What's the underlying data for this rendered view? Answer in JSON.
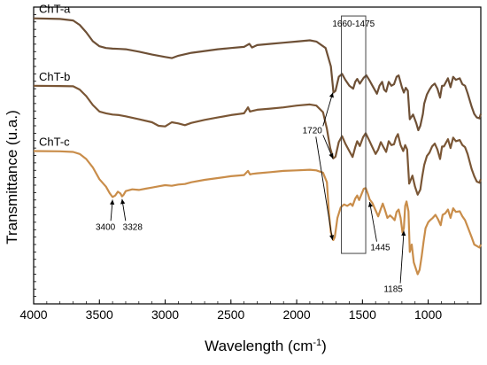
{
  "chart_data": {
    "type": "line",
    "xlabel": "Wavelength (cm",
    "xlabel_sup": "-1",
    "xlabel_end": ")",
    "ylabel": "Transmittance (u.a.)",
    "xlim": [
      4000,
      600
    ],
    "x_reversed": true,
    "ylim": [
      0,
      1
    ],
    "grid": false,
    "x_ticks": [
      4000,
      3500,
      3000,
      2500,
      2000,
      1500,
      1000
    ],
    "x_tick_labels": [
      "4000",
      "3500",
      "3000",
      "2500",
      "2000",
      "1500",
      "1000"
    ],
    "series": [
      {
        "name": "ChT-a",
        "color": "#6e5036",
        "points": [
          [
            4000,
            0.962
          ],
          [
            3800,
            0.96
          ],
          [
            3700,
            0.955
          ],
          [
            3650,
            0.94
          ],
          [
            3600,
            0.915
          ],
          [
            3550,
            0.885
          ],
          [
            3500,
            0.868
          ],
          [
            3450,
            0.862
          ],
          [
            3400,
            0.86
          ],
          [
            3350,
            0.859
          ],
          [
            3300,
            0.858
          ],
          [
            3200,
            0.85
          ],
          [
            3100,
            0.84
          ],
          [
            3000,
            0.832
          ],
          [
            2950,
            0.828
          ],
          [
            2900,
            0.836
          ],
          [
            2800,
            0.846
          ],
          [
            2700,
            0.852
          ],
          [
            2600,
            0.858
          ],
          [
            2500,
            0.862
          ],
          [
            2400,
            0.866
          ],
          [
            2360,
            0.876
          ],
          [
            2340,
            0.864
          ],
          [
            2300,
            0.872
          ],
          [
            2200,
            0.876
          ],
          [
            2100,
            0.88
          ],
          [
            2000,
            0.884
          ],
          [
            1900,
            0.888
          ],
          [
            1850,
            0.884
          ],
          [
            1780,
            0.862
          ],
          [
            1740,
            0.8
          ],
          [
            1720,
            0.712
          ],
          [
            1705,
            0.718
          ],
          [
            1680,
            0.765
          ],
          [
            1655,
            0.775
          ],
          [
            1630,
            0.755
          ],
          [
            1600,
            0.735
          ],
          [
            1570,
            0.725
          ],
          [
            1555,
            0.748
          ],
          [
            1540,
            0.758
          ],
          [
            1520,
            0.742
          ],
          [
            1490,
            0.762
          ],
          [
            1470,
            0.77
          ],
          [
            1445,
            0.752
          ],
          [
            1420,
            0.732
          ],
          [
            1390,
            0.708
          ],
          [
            1370,
            0.735
          ],
          [
            1350,
            0.748
          ],
          [
            1335,
            0.722
          ],
          [
            1320,
            0.715
          ],
          [
            1300,
            0.748
          ],
          [
            1280,
            0.735
          ],
          [
            1260,
            0.74
          ],
          [
            1240,
            0.765
          ],
          [
            1225,
            0.77
          ],
          [
            1200,
            0.73
          ],
          [
            1185,
            0.712
          ],
          [
            1170,
            0.728
          ],
          [
            1155,
            0.718
          ],
          [
            1140,
            0.622
          ],
          [
            1115,
            0.638
          ],
          [
            1090,
            0.608
          ],
          [
            1075,
            0.585
          ],
          [
            1060,
            0.6
          ],
          [
            1040,
            0.64
          ],
          [
            1030,
            0.675
          ],
          [
            1010,
            0.705
          ],
          [
            990,
            0.722
          ],
          [
            970,
            0.735
          ],
          [
            950,
            0.742
          ],
          [
            930,
            0.725
          ],
          [
            910,
            0.695
          ],
          [
            895,
            0.735
          ],
          [
            880,
            0.735
          ],
          [
            850,
            0.76
          ],
          [
            830,
            0.73
          ],
          [
            810,
            0.765
          ],
          [
            790,
            0.755
          ],
          [
            760,
            0.76
          ],
          [
            740,
            0.74
          ],
          [
            720,
            0.735
          ],
          [
            700,
            0.71
          ],
          [
            670,
            0.665
          ],
          [
            650,
            0.64
          ],
          [
            630,
            0.628
          ],
          [
            610,
            0.625
          ],
          [
            600,
            0.64
          ]
        ]
      },
      {
        "name": "ChT-b",
        "color": "#7a5635",
        "points": [
          [
            4000,
            0.735
          ],
          [
            3800,
            0.734
          ],
          [
            3700,
            0.733
          ],
          [
            3650,
            0.722
          ],
          [
            3600,
            0.7
          ],
          [
            3550,
            0.67
          ],
          [
            3500,
            0.648
          ],
          [
            3450,
            0.642
          ],
          [
            3400,
            0.638
          ],
          [
            3350,
            0.636
          ],
          [
            3300,
            0.632
          ],
          [
            3200,
            0.622
          ],
          [
            3100,
            0.612
          ],
          [
            3050,
            0.6
          ],
          [
            3000,
            0.598
          ],
          [
            2950,
            0.612
          ],
          [
            2900,
            0.608
          ],
          [
            2850,
            0.602
          ],
          [
            2800,
            0.61
          ],
          [
            2700,
            0.62
          ],
          [
            2600,
            0.628
          ],
          [
            2500,
            0.636
          ],
          [
            2400,
            0.642
          ],
          [
            2370,
            0.662
          ],
          [
            2355,
            0.648
          ],
          [
            2340,
            0.65
          ],
          [
            2300,
            0.654
          ],
          [
            2200,
            0.658
          ],
          [
            2100,
            0.662
          ],
          [
            2000,
            0.668
          ],
          [
            1900,
            0.672
          ],
          [
            1850,
            0.668
          ],
          [
            1800,
            0.646
          ],
          [
            1770,
            0.59
          ],
          [
            1745,
            0.525
          ],
          [
            1722,
            0.49
          ],
          [
            1705,
            0.496
          ],
          [
            1680,
            0.545
          ],
          [
            1655,
            0.565
          ],
          [
            1630,
            0.54
          ],
          [
            1600,
            0.515
          ],
          [
            1575,
            0.495
          ],
          [
            1555,
            0.528
          ],
          [
            1540,
            0.548
          ],
          [
            1520,
            0.532
          ],
          [
            1495,
            0.562
          ],
          [
            1475,
            0.575
          ],
          [
            1450,
            0.552
          ],
          [
            1425,
            0.528
          ],
          [
            1400,
            0.505
          ],
          [
            1380,
            0.52
          ],
          [
            1360,
            0.545
          ],
          [
            1340,
            0.528
          ],
          [
            1320,
            0.512
          ],
          [
            1300,
            0.548
          ],
          [
            1280,
            0.535
          ],
          [
            1260,
            0.538
          ],
          [
            1245,
            0.56
          ],
          [
            1230,
            0.572
          ],
          [
            1210,
            0.535
          ],
          [
            1190,
            0.515
          ],
          [
            1175,
            0.535
          ],
          [
            1160,
            0.52
          ],
          [
            1145,
            0.405
          ],
          [
            1120,
            0.432
          ],
          [
            1100,
            0.395
          ],
          [
            1080,
            0.368
          ],
          [
            1060,
            0.385
          ],
          [
            1045,
            0.43
          ],
          [
            1030,
            0.468
          ],
          [
            1010,
            0.498
          ],
          [
            990,
            0.51
          ],
          [
            970,
            0.53
          ],
          [
            950,
            0.54
          ],
          [
            930,
            0.52
          ],
          [
            910,
            0.488
          ],
          [
            895,
            0.53
          ],
          [
            880,
            0.53
          ],
          [
            850,
            0.555
          ],
          [
            830,
            0.525
          ],
          [
            810,
            0.56
          ],
          [
            790,
            0.548
          ],
          [
            760,
            0.552
          ],
          [
            740,
            0.535
          ],
          [
            720,
            0.528
          ],
          [
            700,
            0.505
          ],
          [
            670,
            0.455
          ],
          [
            650,
            0.43
          ],
          [
            630,
            0.412
          ],
          [
            610,
            0.408
          ],
          [
            600,
            0.42
          ]
        ]
      },
      {
        "name": "ChT-c",
        "color": "#c98d4a",
        "points": [
          [
            4000,
            0.515
          ],
          [
            3800,
            0.514
          ],
          [
            3700,
            0.512
          ],
          [
            3650,
            0.505
          ],
          [
            3600,
            0.488
          ],
          [
            3550,
            0.46
          ],
          [
            3500,
            0.42
          ],
          [
            3450,
            0.395
          ],
          [
            3420,
            0.372
          ],
          [
            3400,
            0.36
          ],
          [
            3380,
            0.365
          ],
          [
            3360,
            0.378
          ],
          [
            3340,
            0.372
          ],
          [
            3328,
            0.362
          ],
          [
            3315,
            0.368
          ],
          [
            3300,
            0.38
          ],
          [
            3250,
            0.386
          ],
          [
            3200,
            0.384
          ],
          [
            3150,
            0.388
          ],
          [
            3100,
            0.392
          ],
          [
            3050,
            0.396
          ],
          [
            3000,
            0.4
          ],
          [
            2950,
            0.398
          ],
          [
            2900,
            0.402
          ],
          [
            2850,
            0.404
          ],
          [
            2800,
            0.41
          ],
          [
            2700,
            0.418
          ],
          [
            2600,
            0.424
          ],
          [
            2500,
            0.43
          ],
          [
            2400,
            0.434
          ],
          [
            2370,
            0.448
          ],
          [
            2355,
            0.436
          ],
          [
            2340,
            0.438
          ],
          [
            2300,
            0.44
          ],
          [
            2200,
            0.444
          ],
          [
            2100,
            0.448
          ],
          [
            2000,
            0.45
          ],
          [
            1900,
            0.452
          ],
          [
            1850,
            0.45
          ],
          [
            1800,
            0.442
          ],
          [
            1770,
            0.41
          ],
          [
            1755,
            0.31
          ],
          [
            1740,
            0.24
          ],
          [
            1722,
            0.215
          ],
          [
            1710,
            0.225
          ],
          [
            1690,
            0.29
          ],
          [
            1665,
            0.325
          ],
          [
            1640,
            0.335
          ],
          [
            1615,
            0.33
          ],
          [
            1590,
            0.338
          ],
          [
            1575,
            0.33
          ],
          [
            1555,
            0.355
          ],
          [
            1540,
            0.365
          ],
          [
            1525,
            0.35
          ],
          [
            1505,
            0.372
          ],
          [
            1490,
            0.388
          ],
          [
            1475,
            0.39
          ],
          [
            1460,
            0.372
          ],
          [
            1445,
            0.352
          ],
          [
            1425,
            0.34
          ],
          [
            1400,
            0.315
          ],
          [
            1380,
            0.295
          ],
          [
            1360,
            0.32
          ],
          [
            1345,
            0.338
          ],
          [
            1330,
            0.318
          ],
          [
            1310,
            0.29
          ],
          [
            1290,
            0.298
          ],
          [
            1270,
            0.29
          ],
          [
            1255,
            0.282
          ],
          [
            1240,
            0.31
          ],
          [
            1225,
            0.318
          ],
          [
            1210,
            0.29
          ],
          [
            1195,
            0.24
          ],
          [
            1185,
            0.255
          ],
          [
            1175,
            0.33
          ],
          [
            1165,
            0.345
          ],
          [
            1150,
            0.312
          ],
          [
            1140,
            0.175
          ],
          [
            1125,
            0.2
          ],
          [
            1110,
            0.14
          ],
          [
            1095,
            0.12
          ],
          [
            1080,
            0.1
          ],
          [
            1065,
            0.115
          ],
          [
            1050,
            0.16
          ],
          [
            1035,
            0.21
          ],
          [
            1020,
            0.255
          ],
          [
            1000,
            0.275
          ],
          [
            985,
            0.282
          ],
          [
            965,
            0.29
          ],
          [
            945,
            0.3
          ],
          [
            925,
            0.285
          ],
          [
            905,
            0.265
          ],
          [
            890,
            0.3
          ],
          [
            870,
            0.305
          ],
          [
            850,
            0.318
          ],
          [
            830,
            0.29
          ],
          [
            810,
            0.322
          ],
          [
            790,
            0.31
          ],
          [
            760,
            0.312
          ],
          [
            740,
            0.295
          ],
          [
            720,
            0.282
          ],
          [
            700,
            0.26
          ],
          [
            670,
            0.225
          ],
          [
            650,
            0.2
          ],
          [
            630,
            0.195
          ],
          [
            610,
            0.19
          ],
          [
            600,
            0.2
          ]
        ]
      }
    ],
    "annotations": {
      "box_label": "1660-1475",
      "box_range": [
        1660,
        1475
      ],
      "arrow_label_1720": "1720",
      "peak_labels": [
        {
          "text": "3400",
          "x": 3400
        },
        {
          "text": "3328",
          "x": 3328
        },
        {
          "text": "1445",
          "x": 1445
        },
        {
          "text": "1185",
          "x": 1185
        }
      ]
    }
  }
}
